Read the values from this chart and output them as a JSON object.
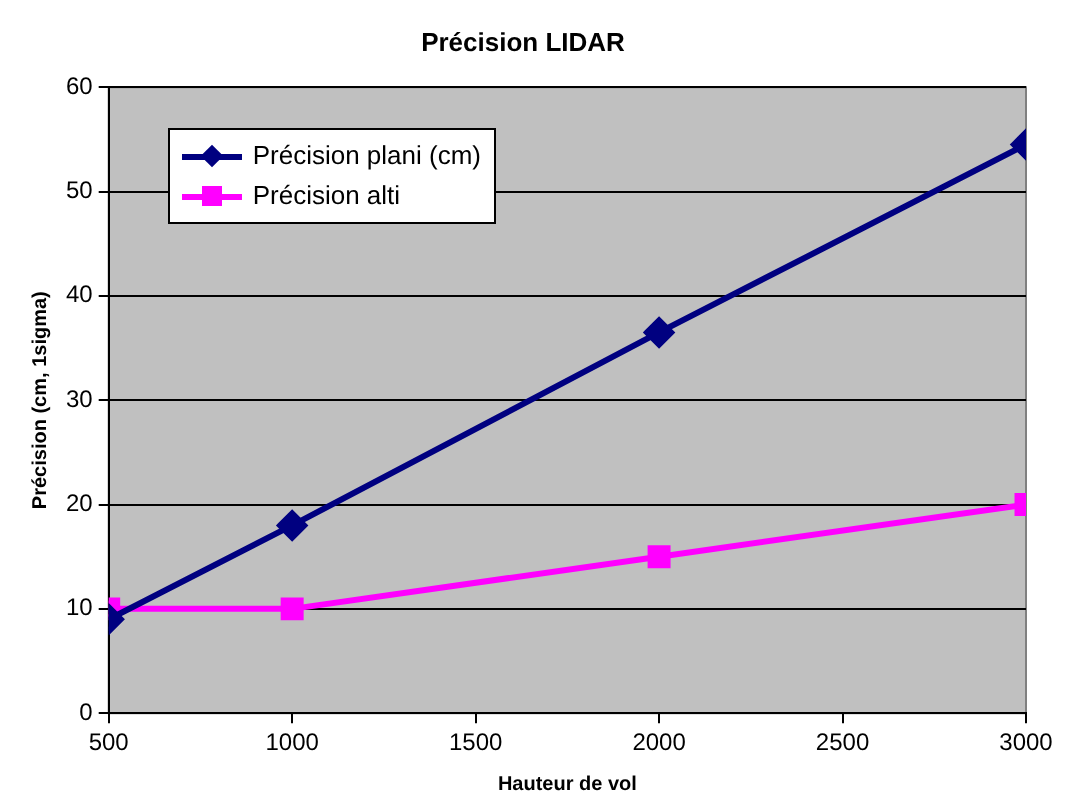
{
  "chart_data": {
    "type": "line",
    "title": "Précision LIDAR",
    "xlabel": "Hauteur de vol",
    "ylabel": "Précision (cm, 1sigma)",
    "x": [
      500,
      1000,
      2000,
      3000
    ],
    "series": [
      {
        "name": "Précision plani (cm)",
        "color": "#000080",
        "marker": "diamond",
        "values": [
          9,
          18,
          36.5,
          54.5
        ]
      },
      {
        "name": "Précision alti",
        "color": "#ff00ff",
        "marker": "square",
        "values": [
          10,
          10,
          15,
          20
        ]
      }
    ],
    "xlim": [
      500,
      3000
    ],
    "xticks": [
      500,
      1000,
      1500,
      2000,
      2500,
      3000
    ],
    "ylim": [
      0,
      60
    ],
    "yticks": [
      0,
      10,
      20,
      30,
      40,
      50,
      60
    ],
    "grid": "y",
    "legend": "top left"
  }
}
